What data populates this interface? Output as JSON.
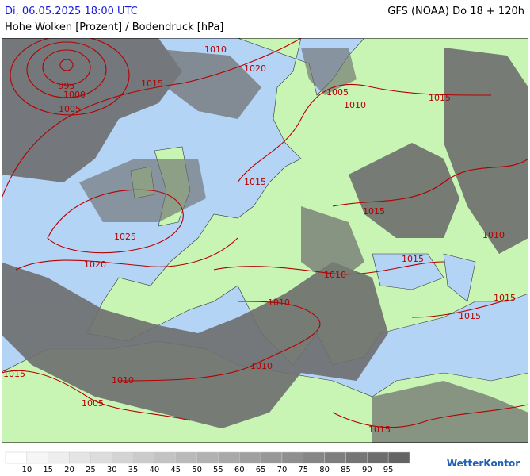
{
  "header": {
    "datetime": "Di, 06.05.2025 18:00 UTC",
    "model": "GFS (NOAA) Do 18 + 120h",
    "title": "Hohe Wolken [Prozent] / Bodendruck [hPa]"
  },
  "isobar_labels": [
    "1010",
    "1015",
    "1020",
    "995",
    "1000",
    "1005",
    "1005",
    "1010",
    "1015",
    "1015",
    "1015",
    "1025",
    "1020",
    "1010",
    "1015",
    "1010",
    "1010",
    "1015",
    "1015",
    "1010",
    "1015",
    "1010",
    "1005",
    "1015"
  ],
  "colorbar": {
    "labels": [
      "10",
      "15",
      "20",
      "25",
      "30",
      "35",
      "40",
      "45",
      "50",
      "55",
      "60",
      "65",
      "70",
      "75",
      "80",
      "85",
      "90",
      "95"
    ]
  },
  "logo": "WetterKontor"
}
